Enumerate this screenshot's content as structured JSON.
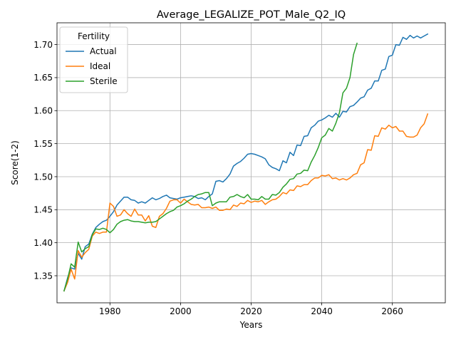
{
  "chart_data": {
    "type": "line",
    "title": "Average_LEGALIZE_POT_Male_Q2_IQ",
    "xlabel": "Years",
    "ylabel": "Score(1-2)",
    "xlim": [
      1965,
      2075
    ],
    "ylim": [
      1.309,
      1.733
    ],
    "x_ticks": [
      1980,
      2000,
      2020,
      2040,
      2060
    ],
    "y_ticks": [
      1.35,
      1.4,
      1.45,
      1.5,
      1.55,
      1.6,
      1.65,
      1.7
    ],
    "grid": true,
    "legend": {
      "title": "Fertility",
      "placement": "top-left"
    },
    "colors": {
      "Actual": "#1f77b4",
      "Ideal": "#ff7f0e",
      "Sterile": "#2ca02c"
    },
    "series": [
      {
        "name": "Actual",
        "x": [
          1967,
          1968,
          1969,
          1970,
          1971,
          1972,
          1973,
          1974,
          1975,
          1976,
          1977,
          1978,
          1979,
          1980,
          1981,
          1982,
          1983,
          1984,
          1985,
          1986,
          1987,
          1988,
          1989,
          1990,
          1991,
          1992,
          1993,
          1994,
          1995,
          1996,
          1997,
          1998,
          1999,
          2000,
          2001,
          2002,
          2003,
          2004,
          2005,
          2006,
          2007,
          2008,
          2009,
          2010,
          2011,
          2012,
          2013,
          2014,
          2015,
          2016,
          2017,
          2018,
          2019,
          2020,
          2021,
          2022,
          2023,
          2024,
          2025,
          2026,
          2027,
          2028,
          2029,
          2030,
          2031,
          2032,
          2033,
          2034,
          2035,
          2036,
          2037,
          2038,
          2039,
          2040,
          2041,
          2042,
          2043,
          2044,
          2045,
          2046,
          2047,
          2048,
          2049,
          2050,
          2051,
          2052,
          2053,
          2054,
          2055,
          2056,
          2057,
          2058,
          2059,
          2060,
          2061,
          2062,
          2063,
          2064,
          2065,
          2066,
          2067,
          2068,
          2069,
          2070
        ],
        "y": [
          1.327,
          1.347,
          1.362,
          1.36,
          1.384,
          1.375,
          1.394,
          1.398,
          1.413,
          1.423,
          1.428,
          1.432,
          1.434,
          1.44,
          1.447,
          1.457,
          1.463,
          1.469,
          1.469,
          1.465,
          1.464,
          1.46,
          1.462,
          1.46,
          1.464,
          1.468,
          1.465,
          1.467,
          1.47,
          1.472,
          1.468,
          1.467,
          1.466,
          1.468,
          1.469,
          1.47,
          1.471,
          1.47,
          1.467,
          1.468,
          1.465,
          1.47,
          1.474,
          1.493,
          1.494,
          1.492,
          1.497,
          1.504,
          1.516,
          1.52,
          1.523,
          1.528,
          1.534,
          1.535,
          1.534,
          1.532,
          1.53,
          1.527,
          1.518,
          1.514,
          1.512,
          1.509,
          1.524,
          1.521,
          1.537,
          1.532,
          1.548,
          1.547,
          1.561,
          1.562,
          1.574,
          1.578,
          1.584,
          1.586,
          1.589,
          1.593,
          1.59,
          1.596,
          1.59,
          1.599,
          1.598,
          1.606,
          1.608,
          1.613,
          1.619,
          1.621,
          1.631,
          1.634,
          1.645,
          1.645,
          1.661,
          1.663,
          1.682,
          1.684,
          1.7,
          1.699,
          1.711,
          1.708,
          1.714,
          1.71,
          1.713,
          1.71,
          1.713,
          1.716
        ]
      },
      {
        "name": "Ideal",
        "x": [
          1967,
          1968,
          1969,
          1970,
          1971,
          1972,
          1973,
          1974,
          1975,
          1976,
          1977,
          1978,
          1979,
          1980,
          1981,
          1982,
          1983,
          1984,
          1985,
          1986,
          1987,
          1988,
          1989,
          1990,
          1991,
          1992,
          1993,
          1994,
          1995,
          1996,
          1997,
          1998,
          1999,
          2000,
          2001,
          2002,
          2003,
          2004,
          2005,
          2006,
          2007,
          2008,
          2009,
          2010,
          2011,
          2012,
          2013,
          2014,
          2015,
          2016,
          2017,
          2018,
          2019,
          2020,
          2021,
          2022,
          2023,
          2024,
          2025,
          2026,
          2027,
          2028,
          2029,
          2030,
          2031,
          2032,
          2033,
          2034,
          2035,
          2036,
          2037,
          2038,
          2039,
          2040,
          2041,
          2042,
          2043,
          2044,
          2045,
          2046,
          2047,
          2048,
          2049,
          2050,
          2051,
          2052,
          2053,
          2054,
          2055,
          2056,
          2057,
          2058,
          2059,
          2060,
          2061,
          2062,
          2063,
          2064,
          2065,
          2066,
          2067,
          2068,
          2069,
          2070
        ],
        "y": [
          1.327,
          1.34,
          1.36,
          1.345,
          1.388,
          1.378,
          1.385,
          1.39,
          1.41,
          1.416,
          1.414,
          1.416,
          1.416,
          1.46,
          1.455,
          1.44,
          1.442,
          1.45,
          1.444,
          1.44,
          1.451,
          1.442,
          1.442,
          1.433,
          1.441,
          1.425,
          1.423,
          1.44,
          1.444,
          1.452,
          1.463,
          1.465,
          1.465,
          1.46,
          1.466,
          1.462,
          1.458,
          1.457,
          1.458,
          1.453,
          1.453,
          1.454,
          1.452,
          1.454,
          1.449,
          1.449,
          1.451,
          1.45,
          1.457,
          1.455,
          1.46,
          1.459,
          1.464,
          1.461,
          1.463,
          1.462,
          1.464,
          1.458,
          1.462,
          1.465,
          1.466,
          1.47,
          1.476,
          1.474,
          1.48,
          1.479,
          1.486,
          1.485,
          1.488,
          1.488,
          1.494,
          1.498,
          1.498,
          1.502,
          1.501,
          1.503,
          1.497,
          1.498,
          1.495,
          1.497,
          1.495,
          1.498,
          1.503,
          1.505,
          1.518,
          1.521,
          1.541,
          1.54,
          1.562,
          1.561,
          1.574,
          1.572,
          1.578,
          1.574,
          1.576,
          1.569,
          1.569,
          1.561,
          1.56,
          1.56,
          1.563,
          1.574,
          1.58,
          1.595
        ]
      },
      {
        "name": "Sterile",
        "x": [
          1967,
          1968,
          1969,
          1970,
          1971,
          1972,
          1973,
          1974,
          1975,
          1976,
          1977,
          1978,
          1979,
          1980,
          1981,
          1982,
          1983,
          1984,
          1985,
          1986,
          1987,
          1988,
          1989,
          1990,
          1991,
          1992,
          1993,
          1994,
          1995,
          1996,
          1997,
          1998,
          1999,
          2000,
          2001,
          2002,
          2003,
          2004,
          2005,
          2006,
          2007,
          2008,
          2009,
          2010,
          2011,
          2012,
          2013,
          2014,
          2015,
          2016,
          2017,
          2018,
          2019,
          2020,
          2021,
          2022,
          2023,
          2024,
          2025,
          2026,
          2027,
          2028,
          2029,
          2030,
          2031,
          2032,
          2033,
          2034,
          2035,
          2036,
          2037,
          2038,
          2039,
          2040,
          2041,
          2042,
          2043,
          2044,
          2045,
          2046,
          2047,
          2048,
          2049,
          2050
        ],
        "y": [
          1.327,
          1.345,
          1.368,
          1.363,
          1.401,
          1.386,
          1.391,
          1.394,
          1.412,
          1.421,
          1.42,
          1.422,
          1.42,
          1.415,
          1.42,
          1.428,
          1.432,
          1.434,
          1.435,
          1.433,
          1.432,
          1.432,
          1.431,
          1.43,
          1.431,
          1.431,
          1.432,
          1.436,
          1.44,
          1.444,
          1.447,
          1.449,
          1.454,
          1.456,
          1.459,
          1.463,
          1.466,
          1.47,
          1.473,
          1.474,
          1.476,
          1.476,
          1.456,
          1.46,
          1.462,
          1.462,
          1.462,
          1.469,
          1.47,
          1.473,
          1.47,
          1.468,
          1.473,
          1.466,
          1.466,
          1.465,
          1.47,
          1.466,
          1.466,
          1.473,
          1.472,
          1.476,
          1.484,
          1.489,
          1.496,
          1.497,
          1.504,
          1.505,
          1.51,
          1.509,
          1.522,
          1.532,
          1.544,
          1.559,
          1.563,
          1.573,
          1.569,
          1.581,
          1.597,
          1.627,
          1.634,
          1.65,
          1.685,
          1.702
        ]
      }
    ]
  }
}
